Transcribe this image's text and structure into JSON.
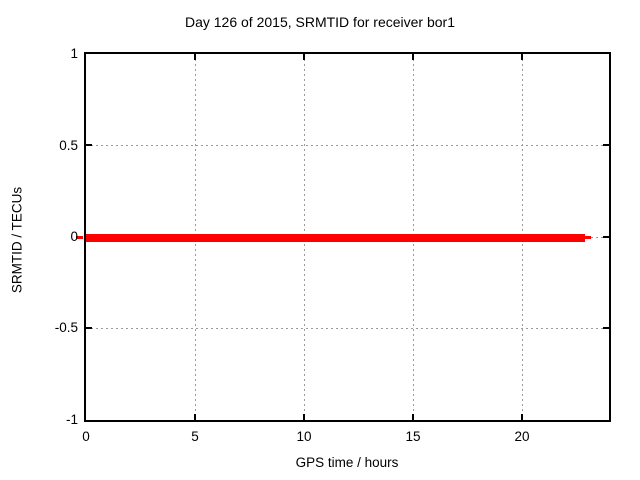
{
  "chart": {
    "title": "Day 126 of 2015, SRMTID for receiver bor1",
    "xlabel": "GPS time / hours",
    "ylabel": "SRMTID / TECUs",
    "x_tick_labels": [
      "0",
      "5",
      "10",
      "15",
      "20"
    ],
    "y_tick_labels": [
      "1",
      "0.5",
      "0",
      "-0.5",
      "-1"
    ]
  },
  "chart_data": {
    "type": "line",
    "title": "Day 126 of 2015, SRMTID for receiver bor1",
    "xlabel": "GPS time / hours",
    "ylabel": "SRMTID / TECUs",
    "xlim": [
      0,
      24
    ],
    "ylim": [
      -1,
      1
    ],
    "x_ticks": [
      0,
      5,
      10,
      15,
      20
    ],
    "y_ticks": [
      1,
      0.5,
      0,
      -0.5,
      -1
    ],
    "grid": true,
    "legend_position": "none",
    "series": [
      {
        "name": "SRMTID",
        "color": "#ff0000",
        "style": "thick solid line",
        "x": [
          0,
          22.9
        ],
        "y": [
          0,
          0
        ],
        "note": "flat line at SRMTID = 0 TECUs spanning GPS time 0 to ~22.9 hours, with thin 1px-style end caps at both extremes"
      }
    ]
  },
  "colors": {
    "series_line": "#ff0000",
    "grid": "#9a9a9a",
    "axis_border": "#000000",
    "background": "#ffffff",
    "text": "#000000"
  }
}
